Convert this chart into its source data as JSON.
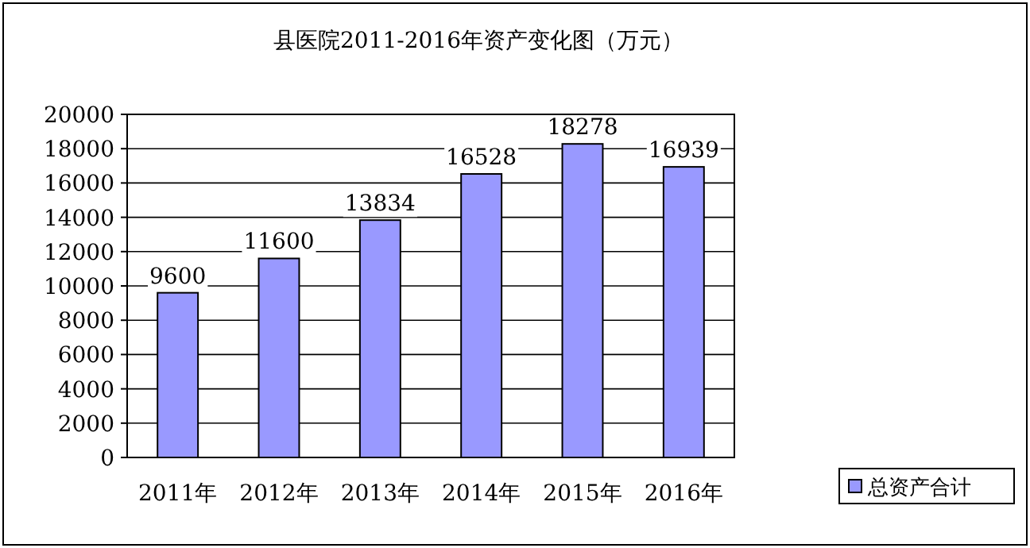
{
  "chart_data": {
    "type": "bar",
    "title": "县医院2011-2016年资产变化图（万元）",
    "categories": [
      "2011年",
      "2012年",
      "2013年",
      "2014年",
      "2015年",
      "2016年"
    ],
    "series": [
      {
        "name": "总资产合计",
        "color": "#9999ff",
        "values": [
          9600,
          11600,
          13834,
          16528,
          18278,
          16939
        ]
      }
    ],
    "ylim": [
      0,
      20000
    ],
    "yticks": [
      0,
      2000,
      4000,
      6000,
      8000,
      10000,
      12000,
      14000,
      16000,
      18000,
      20000
    ],
    "grid": "y",
    "legend": "bottom right",
    "data_labels": true
  }
}
